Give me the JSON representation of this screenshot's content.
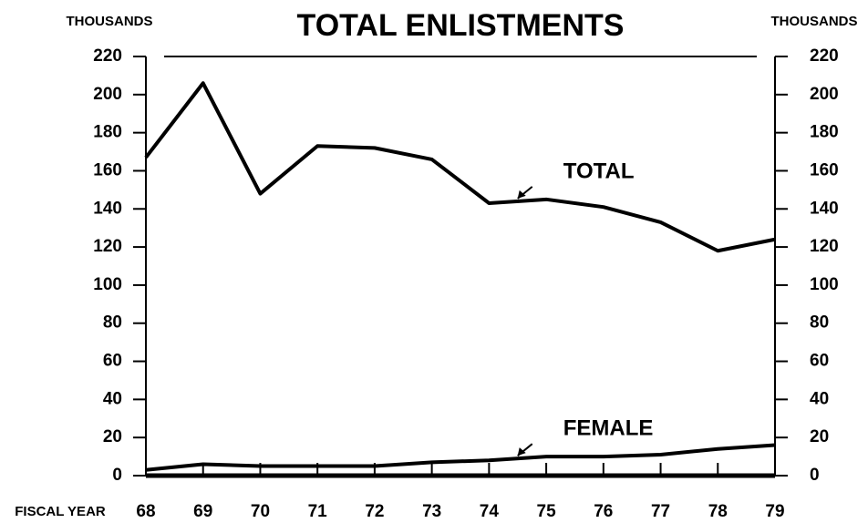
{
  "chart_data": {
    "type": "line",
    "title": "TOTAL ENLISTMENTS",
    "y_label": "THOUSANDS",
    "y2_label": "THOUSANDS",
    "x_label": "FISCAL YEAR",
    "categories": [
      "68",
      "69",
      "70",
      "71",
      "72",
      "73",
      "74",
      "75",
      "76",
      "77",
      "78",
      "79"
    ],
    "series": [
      {
        "name": "TOTAL",
        "color": "#000000",
        "values": [
          167,
          206,
          148,
          173,
          172,
          166,
          143,
          145,
          141,
          133,
          118,
          124
        ]
      },
      {
        "name": "FEMALE",
        "color": "#000000",
        "values": [
          3,
          6,
          5,
          5,
          5,
          7,
          8,
          10,
          10,
          11,
          14,
          16
        ]
      }
    ],
    "ylim": [
      0,
      220
    ],
    "yticks": [
      0,
      20,
      40,
      60,
      80,
      100,
      120,
      140,
      160,
      180,
      200,
      220
    ],
    "y2lim": [
      0,
      220
    ],
    "y2ticks": [
      0,
      20,
      40,
      60,
      80,
      100,
      120,
      140,
      160,
      180,
      200,
      220
    ],
    "grid": false
  }
}
